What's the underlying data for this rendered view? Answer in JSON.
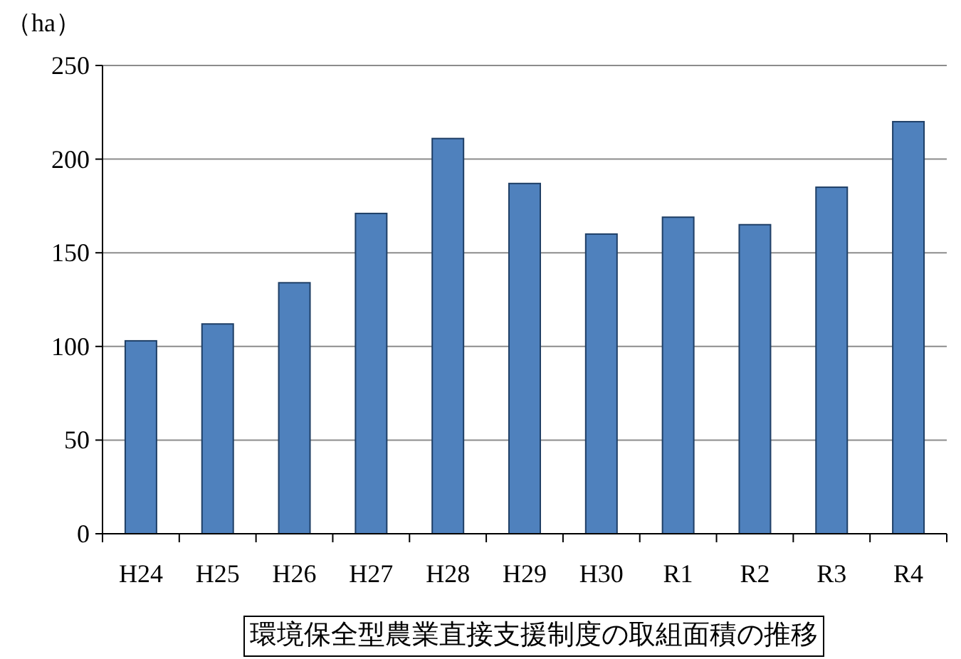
{
  "chart_data": {
    "type": "bar",
    "ylabel": "（ha）",
    "categories": [
      "H24",
      "H25",
      "H26",
      "H27",
      "H28",
      "H29",
      "H30",
      "R1",
      "R2",
      "R3",
      "R4"
    ],
    "values": [
      103,
      112,
      134,
      171,
      211,
      187,
      160,
      169,
      165,
      185,
      220
    ],
    "color": "#4f81bd",
    "ylim": [
      0,
      250
    ],
    "yticks": [
      0,
      50,
      100,
      150,
      200,
      250
    ],
    "grid": "y",
    "annotations": [
      "環境保全型農業直接支援制度の取組面積の推移"
    ]
  }
}
